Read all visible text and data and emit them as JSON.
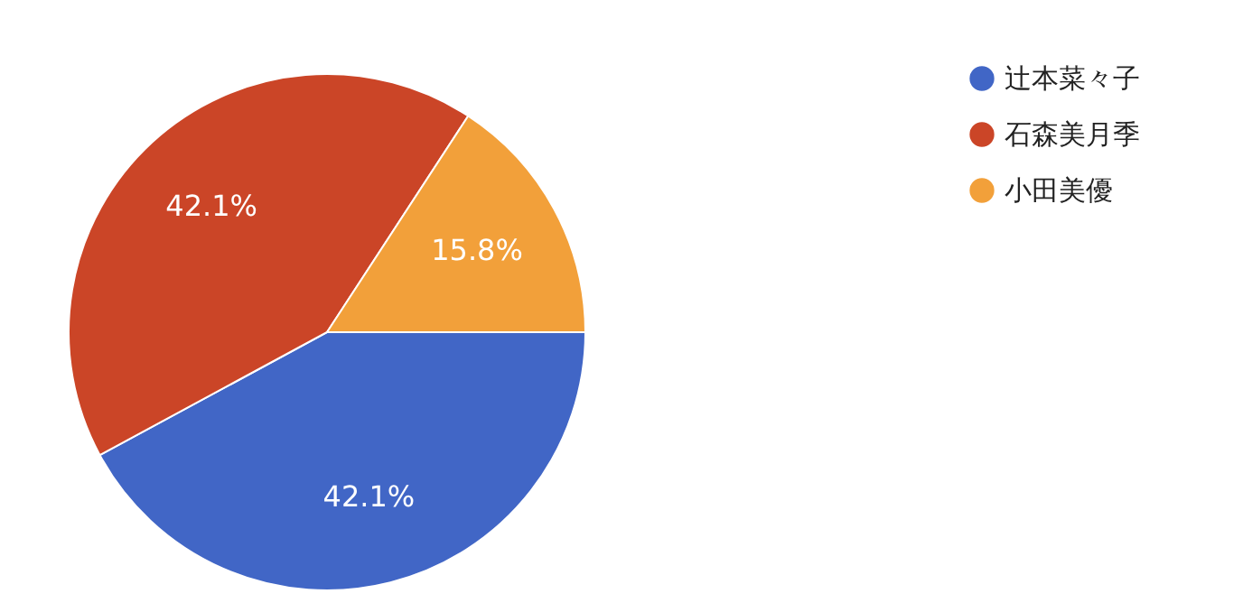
{
  "chart_data": {
    "type": "pie",
    "categories": [
      "辻本菜々子",
      "石森美月季",
      "小田美優"
    ],
    "values": [
      42.1,
      42.1,
      15.8
    ],
    "colors": [
      "#4166c6",
      "#cb4527",
      "#f2a03a"
    ],
    "value_labels": [
      "42.1%",
      "42.1%",
      "15.8%"
    ],
    "legend": "top right"
  }
}
